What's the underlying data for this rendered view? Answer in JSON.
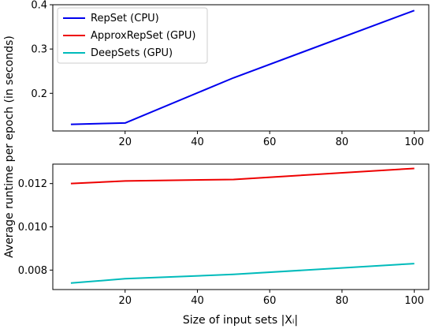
{
  "chart_data": [
    {
      "type": "line",
      "x": [
        5,
        20,
        50,
        100
      ],
      "xticks": [
        20,
        40,
        60,
        80,
        100
      ],
      "xlim": [
        0,
        104
      ],
      "ylim": [
        0.115,
        0.4
      ],
      "yticks": [
        "0.2",
        "0.3",
        "0.4"
      ],
      "series": [
        {
          "name": "RepSet (CPU)",
          "color": "#0000ee",
          "values": [
            0.13,
            0.133,
            0.235,
            0.387
          ]
        }
      ]
    },
    {
      "type": "line",
      "x": [
        5,
        20,
        50,
        100
      ],
      "xticks": [
        20,
        40,
        60,
        80,
        100
      ],
      "xlim": [
        0,
        104
      ],
      "ylim": [
        0.0071,
        0.0129
      ],
      "yticks": [
        "0.008",
        "0.010",
        "0.012"
      ],
      "series": [
        {
          "name": "ApproxRepSet (GPU)",
          "color": "#ee0000",
          "values": [
            0.012,
            0.01212,
            0.01219,
            0.0127
          ]
        },
        {
          "name": "DeepSets (GPU)",
          "color": "#00bbbb",
          "values": [
            0.0074,
            0.0076,
            0.0078,
            0.0083
          ]
        }
      ]
    }
  ],
  "legend": {
    "placement": "top-left",
    "entries": [
      {
        "label": "RepSet (CPU)",
        "color": "#0000ee"
      },
      {
        "label": "ApproxRepSet (GPU)",
        "color": "#ee0000"
      },
      {
        "label": "DeepSets (GPU)",
        "color": "#00bbbb"
      }
    ]
  },
  "ylabel": "Average runtime per epoch (in seconds)",
  "xlabel": "Size of input sets |Xᵢ|"
}
